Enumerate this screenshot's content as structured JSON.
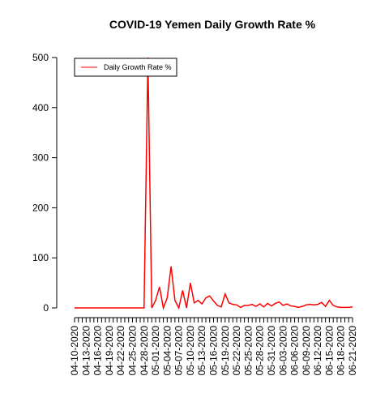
{
  "chart_data": {
    "type": "line",
    "title": "COVID-19 Yemen Daily Growth Rate %",
    "categories": [
      "04-10-2020",
      null,
      null,
      "04-13-2020",
      null,
      null,
      "04-16-2020",
      null,
      null,
      "04-19-2020",
      null,
      null,
      "04-22-2020",
      null,
      null,
      "04-25-2020",
      null,
      null,
      "04-28-2020",
      null,
      null,
      "05-01-2020",
      null,
      null,
      "05-04-2020",
      null,
      null,
      "05-07-2020",
      null,
      null,
      "05-10-2020",
      null,
      null,
      "05-13-2020",
      null,
      null,
      "05-16-2020",
      null,
      null,
      "05-19-2020",
      null,
      null,
      "05-22-2020",
      null,
      null,
      "05-25-2020",
      null,
      null,
      "05-28-2020",
      null,
      null,
      "05-31-2020",
      null,
      null,
      "06-03-2020",
      null,
      null,
      "06-06-2020",
      null,
      null,
      "06-09-2020",
      null,
      null,
      "06-12-2020",
      null,
      null,
      "06-15-2020",
      null,
      null,
      "06-18-2020",
      null,
      null,
      "06-21-2020"
    ],
    "series": [
      {
        "name": "Daily Growth Rate %",
        "color": "#ff0000",
        "values": [
          0,
          0,
          0,
          0,
          0,
          0,
          0,
          0,
          0,
          0,
          0,
          0,
          0,
          0,
          0,
          0,
          0,
          0,
          0,
          500,
          0,
          15,
          42,
          0,
          20,
          83,
          15,
          0,
          35,
          0,
          50,
          10,
          15,
          8,
          20,
          24,
          14,
          5,
          2,
          28,
          10,
          7,
          6,
          1,
          5,
          5,
          7,
          3,
          8,
          2,
          9,
          4,
          9,
          12,
          5,
          8,
          4,
          3,
          1,
          3,
          6,
          7,
          6,
          7,
          11,
          3,
          15,
          5,
          2,
          1,
          1,
          1,
          2
        ]
      }
    ],
    "ylim": [
      0,
      500
    ],
    "yticks": [
      0,
      100,
      200,
      300,
      400,
      500
    ],
    "legend": "top-left"
  }
}
